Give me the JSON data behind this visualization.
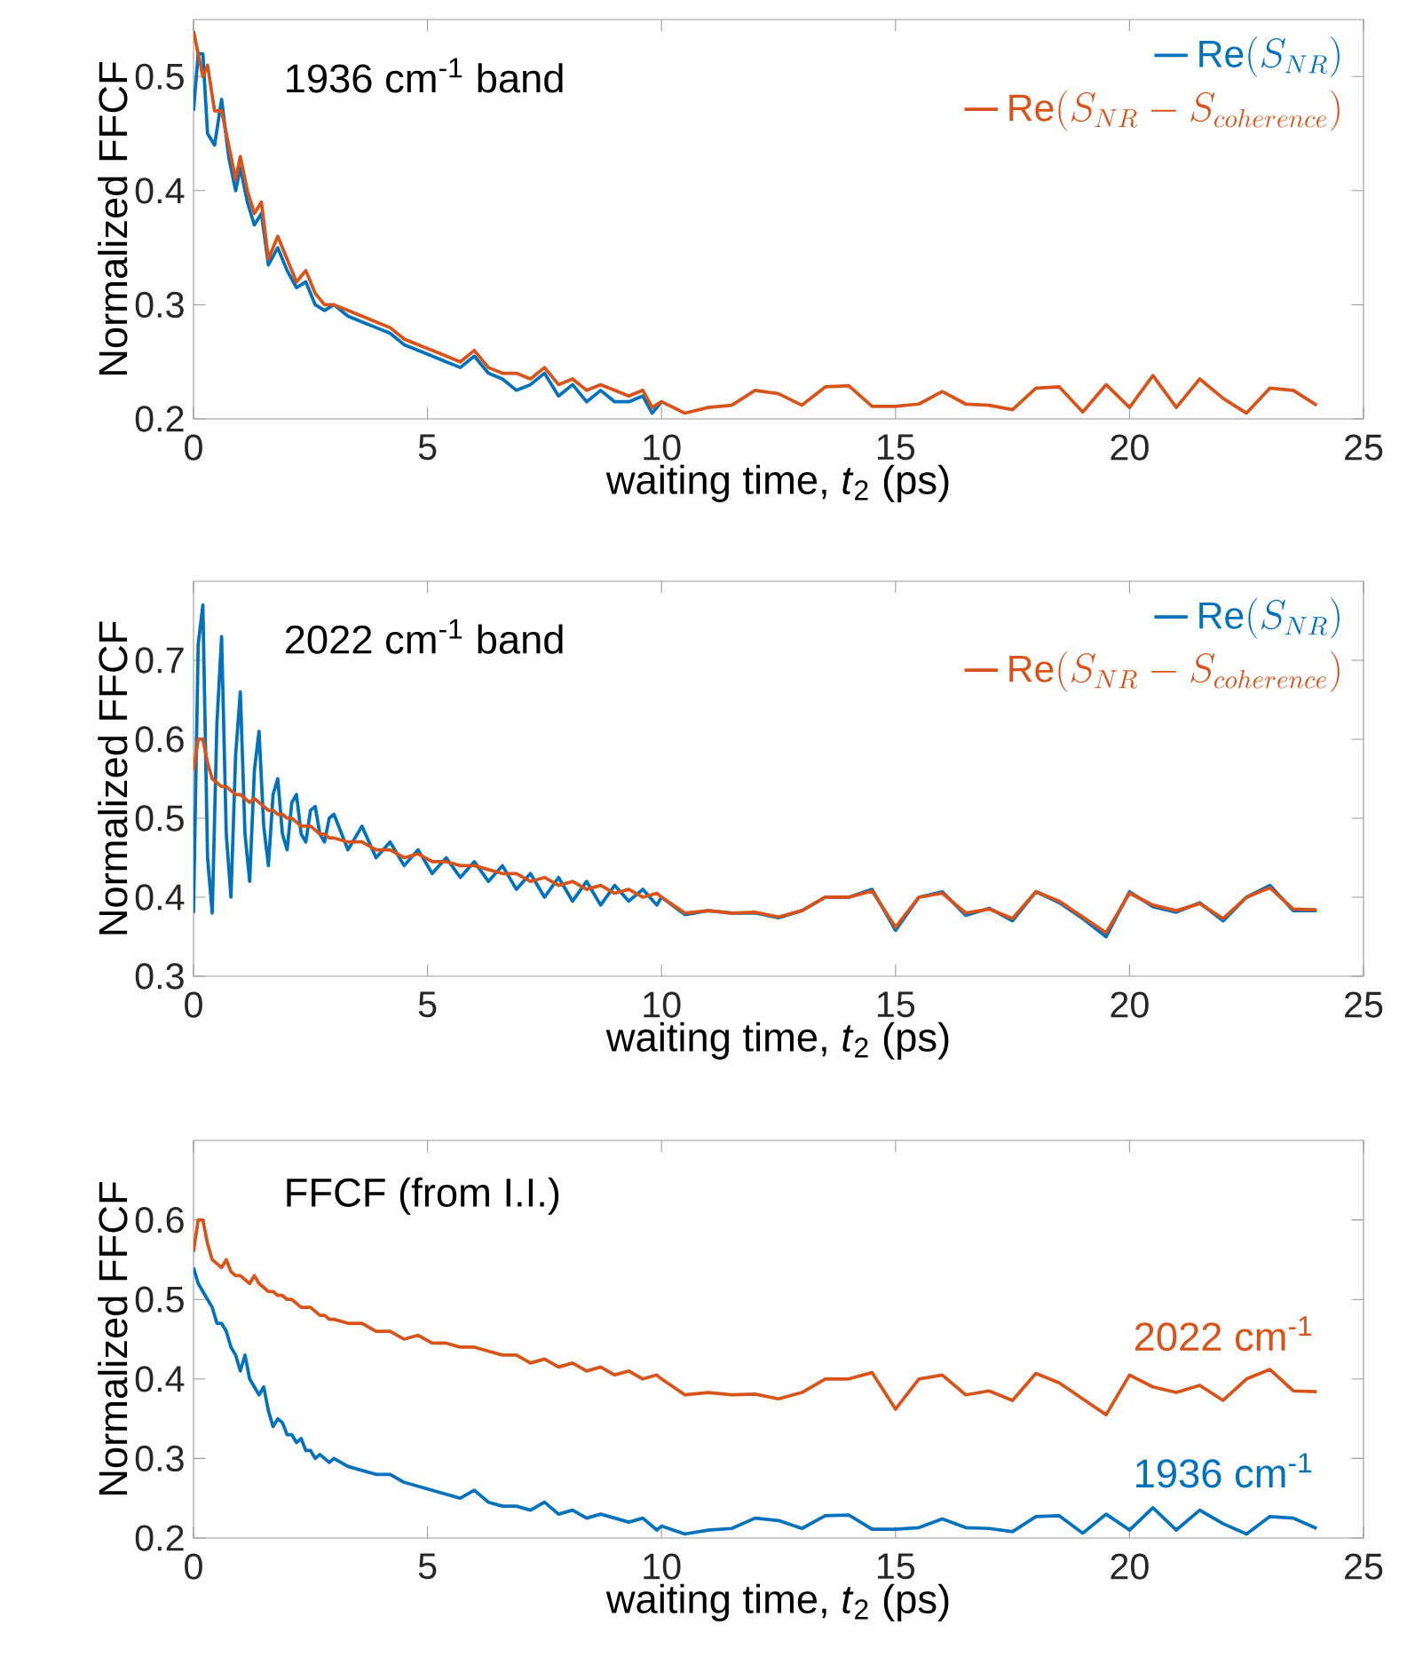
{
  "chart_data": [
    {
      "type": "line",
      "title": "1936 cm$^{-1}$ band",
      "xlabel": "waiting time, *t*$_{2}$ (ps)",
      "ylabel": "Normalized FFCF",
      "xlim": [
        0,
        25
      ],
      "ylim": [
        0.2,
        0.55
      ],
      "xticks": [
        0,
        5,
        10,
        15,
        20,
        25
      ],
      "yticks": [
        0.2,
        0.3,
        0.4,
        0.5
      ],
      "legend": "top right",
      "x": [
        0,
        0.1,
        0.2,
        0.3,
        0.45,
        0.6,
        0.75,
        0.9,
        1,
        1.15,
        1.3,
        1.45,
        1.6,
        1.8,
        2,
        2.2,
        2.4,
        2.6,
        2.8,
        3,
        3.3,
        3.6,
        3.9,
        4.2,
        4.5,
        4.8,
        5.1,
        5.4,
        5.7,
        6,
        6.3,
        6.6,
        6.9,
        7.2,
        7.5,
        7.8,
        8.1,
        8.4,
        8.7,
        9,
        9.3,
        9.6,
        9.8,
        10,
        10.5,
        11,
        11.5,
        12,
        12.5,
        13,
        13.5,
        14,
        14.5,
        15,
        15.5,
        16,
        16.5,
        17,
        17.5,
        18,
        18.5,
        19,
        19.5,
        20,
        20.5,
        21,
        21.5,
        22,
        22.5,
        23,
        23.5,
        24
      ],
      "series": [
        {
          "name": "\\mathrm{Re}(S_{NR})",
          "color": "#0072bd",
          "values": [
            0.47,
            0.52,
            0.52,
            0.45,
            0.44,
            0.48,
            0.43,
            0.4,
            0.42,
            0.39,
            0.37,
            0.38,
            0.335,
            0.35,
            0.33,
            0.315,
            0.32,
            0.3,
            0.295,
            0.3,
            0.29,
            0.285,
            0.28,
            0.275,
            0.265,
            0.26,
            0.255,
            0.25,
            0.245,
            0.255,
            0.24,
            0.235,
            0.225,
            0.23,
            0.24,
            0.22,
            0.23,
            0.215,
            0.225,
            0.215,
            0.215,
            0.22,
            0.205,
            0.215,
            null,
            null,
            null,
            null,
            null,
            null,
            null,
            null,
            null,
            null,
            null,
            null,
            null,
            null,
            null,
            null,
            null,
            null,
            null,
            null,
            null,
            null,
            null,
            null,
            null,
            null,
            null,
            null
          ]
        },
        {
          "name": "\\mathrm{Re}(S_{NR}-S_{coherence})",
          "color": "#d95319",
          "values": [
            0.54,
            0.52,
            0.5,
            0.51,
            0.47,
            0.47,
            0.44,
            0.41,
            0.43,
            0.4,
            0.38,
            0.39,
            0.34,
            0.36,
            0.34,
            0.32,
            0.33,
            0.31,
            0.3,
            0.3,
            0.295,
            0.29,
            0.285,
            0.28,
            0.27,
            0.265,
            0.26,
            0.255,
            0.25,
            0.26,
            0.245,
            0.24,
            0.24,
            0.235,
            0.245,
            0.23,
            0.235,
            0.225,
            0.23,
            0.225,
            0.22,
            0.225,
            0.21,
            0.215,
            0.205,
            0.21,
            0.212,
            0.225,
            0.222,
            0.212,
            0.228,
            0.229,
            0.211,
            0.211,
            0.213,
            0.224,
            0.213,
            0.212,
            0.208,
            0.227,
            0.228,
            0.206,
            0.23,
            0.21,
            0.238,
            0.21,
            0.235,
            0.218,
            0.205,
            0.227,
            0.225,
            0.212
          ]
        }
      ]
    },
    {
      "type": "line",
      "title": "2022 cm$^{-1}$ band",
      "xlabel": "waiting time, *t*$_{2}$ (ps)",
      "ylabel": "Normalized FFCF",
      "xlim": [
        0,
        25
      ],
      "ylim": [
        0.3,
        0.8
      ],
      "xticks": [
        0,
        5,
        10,
        15,
        20,
        25
      ],
      "yticks": [
        0.3,
        0.4,
        0.5,
        0.6,
        0.7
      ],
      "legend": "top right",
      "x": [
        0,
        0.1,
        0.2,
        0.3,
        0.4,
        0.5,
        0.6,
        0.7,
        0.8,
        0.9,
        1,
        1.1,
        1.2,
        1.3,
        1.4,
        1.5,
        1.6,
        1.7,
        1.8,
        1.9,
        2,
        2.1,
        2.2,
        2.3,
        2.4,
        2.5,
        2.6,
        2.7,
        2.8,
        2.9,
        3,
        3.3,
        3.6,
        3.9,
        4.2,
        4.5,
        4.8,
        5.1,
        5.4,
        5.7,
        6,
        6.3,
        6.6,
        6.9,
        7.2,
        7.5,
        7.8,
        8.1,
        8.4,
        8.7,
        9,
        9.3,
        9.6,
        9.9,
        10,
        10.5,
        11,
        11.5,
        12,
        12.5,
        13,
        13.5,
        14,
        14.5,
        15,
        15.5,
        16,
        16.5,
        17,
        17.5,
        18,
        18.5,
        19,
        19.5,
        20,
        20.5,
        21,
        21.5,
        22,
        22.5,
        23,
        23.5,
        24
      ],
      "series": [
        {
          "name": "\\mathrm{Re}(S_{NR})",
          "color": "#0072bd",
          "values": [
            0.38,
            0.72,
            0.77,
            0.45,
            0.38,
            0.62,
            0.73,
            0.48,
            0.4,
            0.58,
            0.66,
            0.48,
            0.42,
            0.56,
            0.61,
            0.49,
            0.44,
            0.53,
            0.55,
            0.48,
            0.46,
            0.52,
            0.53,
            0.48,
            0.47,
            0.51,
            0.515,
            0.48,
            0.47,
            0.5,
            0.505,
            0.46,
            0.49,
            0.45,
            0.47,
            0.44,
            0.46,
            0.43,
            0.45,
            0.425,
            0.445,
            0.42,
            0.44,
            0.41,
            0.43,
            0.4,
            0.425,
            0.395,
            0.42,
            0.39,
            0.415,
            0.395,
            0.41,
            0.39,
            0.4,
            0.378,
            0.383,
            0.38,
            0.38,
            0.374,
            0.383,
            0.4,
            0.4,
            0.41,
            0.358,
            0.4,
            0.407,
            0.377,
            0.386,
            0.37,
            0.407,
            0.393,
            0.373,
            0.35,
            0.407,
            0.388,
            0.381,
            0.393,
            0.37,
            0.4,
            0.415,
            0.383,
            0.383
          ]
        },
        {
          "name": "\\mathrm{Re}(S_{NR}-S_{coherence})",
          "color": "#d95319",
          "values": [
            0.56,
            0.6,
            0.6,
            0.57,
            0.55,
            0.545,
            0.54,
            0.54,
            0.535,
            0.53,
            0.53,
            0.525,
            0.52,
            0.525,
            0.52,
            0.515,
            0.51,
            0.51,
            0.505,
            0.505,
            0.5,
            0.5,
            0.495,
            0.49,
            0.49,
            0.49,
            0.485,
            0.48,
            0.48,
            0.475,
            0.475,
            0.47,
            0.47,
            0.46,
            0.46,
            0.45,
            0.455,
            0.445,
            0.445,
            0.44,
            0.44,
            0.435,
            0.43,
            0.43,
            0.42,
            0.425,
            0.415,
            0.42,
            0.41,
            0.415,
            0.405,
            0.41,
            0.4,
            0.405,
            0.4,
            0.38,
            0.383,
            0.38,
            0.381,
            0.375,
            0.383,
            0.4,
            0.4,
            0.408,
            0.362,
            0.4,
            0.405,
            0.38,
            0.385,
            0.373,
            0.407,
            0.395,
            0.375,
            0.355,
            0.405,
            0.39,
            0.383,
            0.392,
            0.373,
            0.4,
            0.412,
            0.385,
            0.384
          ]
        }
      ]
    },
    {
      "type": "line",
      "title": "FFCF (from I.I.)",
      "xlabel": "waiting time, *t*$_{2}$ (ps)",
      "ylabel": "Normalized FFCF",
      "xlim": [
        0,
        25
      ],
      "ylim": [
        0.2,
        0.7
      ],
      "xticks": [
        0,
        5,
        10,
        15,
        20,
        25
      ],
      "yticks": [
        0.2,
        0.3,
        0.4,
        0.5,
        0.6
      ],
      "x": [
        0,
        0.1,
        0.2,
        0.3,
        0.4,
        0.5,
        0.6,
        0.7,
        0.8,
        0.9,
        1,
        1.1,
        1.2,
        1.3,
        1.4,
        1.5,
        1.6,
        1.7,
        1.8,
        1.9,
        2,
        2.1,
        2.2,
        2.3,
        2.4,
        2.5,
        2.6,
        2.7,
        2.8,
        2.9,
        3,
        3.3,
        3.6,
        3.9,
        4.2,
        4.5,
        4.8,
        5.1,
        5.4,
        5.7,
        6,
        6.3,
        6.6,
        6.9,
        7.2,
        7.5,
        7.8,
        8.1,
        8.4,
        8.7,
        9,
        9.3,
        9.6,
        9.9,
        10,
        10.5,
        11,
        11.5,
        12,
        12.5,
        13,
        13.5,
        14,
        14.5,
        15,
        15.5,
        16,
        16.5,
        17,
        17.5,
        18,
        18.5,
        19,
        19.5,
        20,
        20.5,
        21,
        21.5,
        22,
        22.5,
        23,
        23.5,
        24
      ],
      "series": [
        {
          "name": "1936 cm$^{-1}$",
          "color": "#0072bd",
          "values": [
            0.54,
            0.52,
            0.51,
            0.5,
            0.49,
            0.47,
            0.47,
            0.46,
            0.44,
            0.43,
            0.41,
            0.43,
            0.4,
            0.39,
            0.38,
            0.39,
            0.36,
            0.34,
            0.35,
            0.345,
            0.33,
            0.33,
            0.32,
            0.325,
            0.31,
            0.31,
            0.3,
            0.305,
            0.3,
            0.295,
            0.3,
            0.29,
            0.285,
            0.28,
            0.28,
            0.27,
            0.265,
            0.26,
            0.255,
            0.25,
            0.26,
            0.245,
            0.24,
            0.24,
            0.235,
            0.245,
            0.23,
            0.235,
            0.225,
            0.23,
            0.225,
            0.22,
            0.225,
            0.21,
            0.215,
            0.205,
            0.21,
            0.212,
            0.225,
            0.222,
            0.212,
            0.228,
            0.229,
            0.211,
            0.211,
            0.213,
            0.224,
            0.213,
            0.212,
            0.208,
            0.227,
            0.228,
            0.206,
            0.23,
            0.21,
            0.238,
            0.21,
            0.235,
            0.218,
            0.205,
            0.227,
            0.225,
            0.212
          ]
        },
        {
          "name": "2022 cm$^{-1}$",
          "color": "#d95319",
          "values": [
            0.56,
            0.6,
            0.6,
            0.57,
            0.55,
            0.545,
            0.54,
            0.55,
            0.535,
            0.53,
            0.53,
            0.525,
            0.52,
            0.53,
            0.52,
            0.515,
            0.51,
            0.51,
            0.505,
            0.505,
            0.5,
            0.5,
            0.495,
            0.49,
            0.49,
            0.49,
            0.485,
            0.48,
            0.48,
            0.475,
            0.475,
            0.47,
            0.47,
            0.46,
            0.46,
            0.45,
            0.455,
            0.445,
            0.445,
            0.44,
            0.44,
            0.435,
            0.43,
            0.43,
            0.42,
            0.425,
            0.415,
            0.42,
            0.41,
            0.415,
            0.405,
            0.41,
            0.4,
            0.405,
            0.4,
            0.38,
            0.383,
            0.38,
            0.381,
            0.375,
            0.383,
            0.4,
            0.4,
            0.408,
            0.362,
            0.4,
            0.405,
            0.38,
            0.385,
            0.373,
            0.407,
            0.395,
            0.375,
            0.355,
            0.405,
            0.39,
            0.383,
            0.392,
            0.373,
            0.4,
            0.412,
            0.385,
            0.384
          ]
        }
      ]
    }
  ]
}
